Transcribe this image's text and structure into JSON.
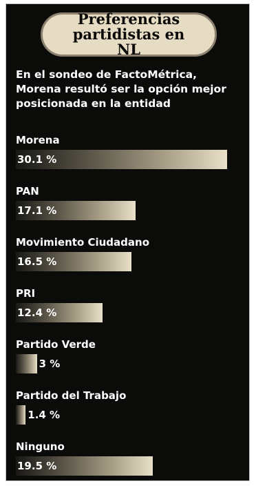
{
  "header": {
    "title": "Preferencias partidistas en NL",
    "subtitle": "En el sondeo de FactoMétrica, Morena resultó ser la opción mejor posicionada en la entidad"
  },
  "colors": {
    "background": "#0b0b0a",
    "title_pill": "#e6dbc3",
    "bar_light": "#e9e0ca",
    "text": "#ffffff"
  },
  "chart_data": {
    "type": "bar",
    "orientation": "horizontal",
    "title": "Preferencias partidistas en NL",
    "subtitle": "En el sondeo de FactoMétrica, Morena resultó ser la opción mejor posicionada en la entidad",
    "categories": [
      "Morena",
      "PAN",
      "Movimiento Ciudadano",
      "PRI",
      "Partido Verde",
      "Partido del Trabajo",
      "Ninguno"
    ],
    "values": [
      30.1,
      17.1,
      16.5,
      12.4,
      3,
      1.4,
      19.5
    ],
    "value_labels": [
      "30.1 %",
      "17.1 %",
      "16.5 %",
      "12.4 %",
      "3 %",
      "1.4 %",
      "19.5 %"
    ],
    "unit": "%",
    "grid": false,
    "legend": "none"
  }
}
